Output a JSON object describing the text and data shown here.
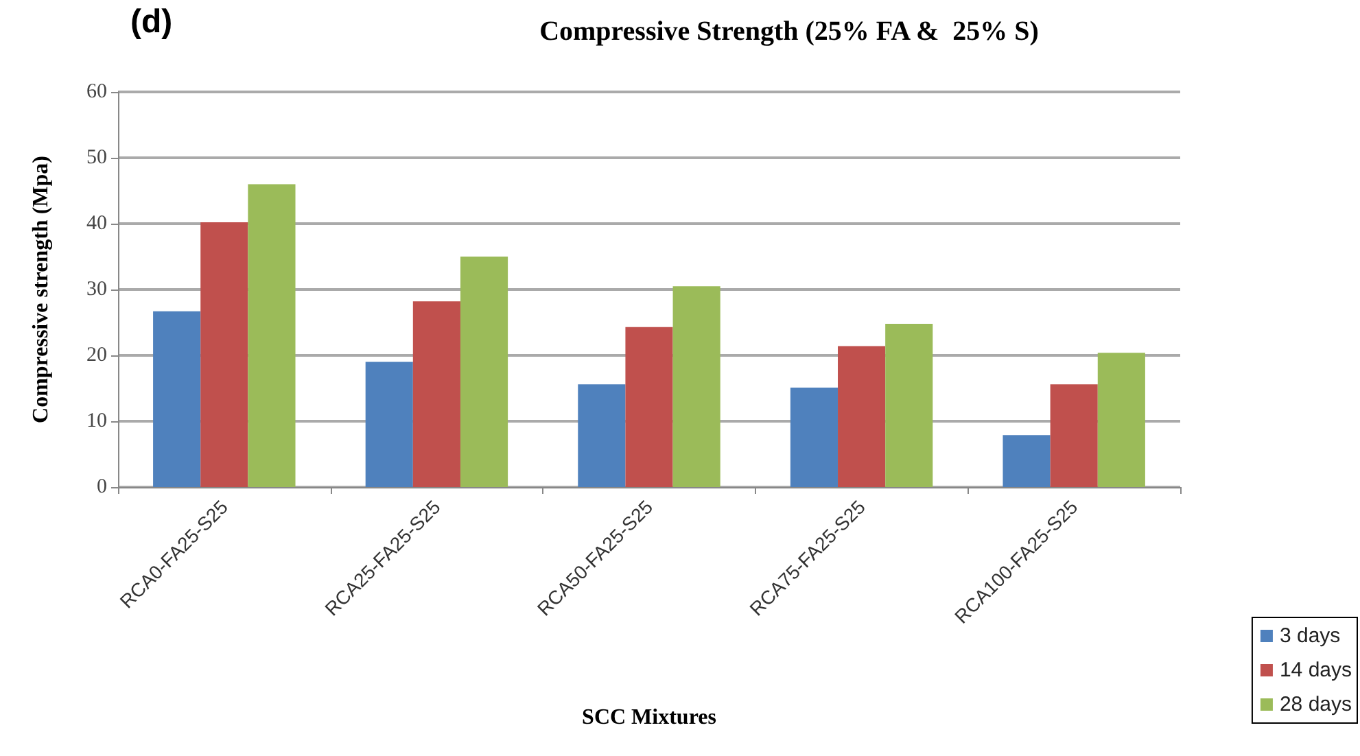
{
  "chart_data": {
    "type": "bar",
    "title": "Compressive Strength (25% FA &  25% S)",
    "xlabel": "SCC Mixtures",
    "ylabel": "Compressive strength (Mpa)",
    "annotations": [
      "(d)"
    ],
    "categories": [
      "RCA0-FA25-S25",
      "RCA25-FA25-S25",
      "RCA50-FA25-S25",
      "RCA75-FA25-S25",
      "RCA100-FA25-S25"
    ],
    "series": [
      {
        "name": "3 days",
        "color": "#4f81bd",
        "values": [
          26.7,
          19.0,
          15.6,
          15.1,
          7.9
        ]
      },
      {
        "name": "14 days",
        "color": "#c0504d",
        "values": [
          40.2,
          28.2,
          24.3,
          21.4,
          15.6
        ]
      },
      {
        "name": "28 days",
        "color": "#9bbb59",
        "values": [
          46.0,
          35.0,
          30.5,
          24.8,
          20.4
        ]
      }
    ],
    "ylim": [
      0,
      60
    ],
    "yticks": [
      0,
      10,
      20,
      30,
      40,
      50,
      60
    ],
    "grid": "y",
    "legend": "right"
  }
}
